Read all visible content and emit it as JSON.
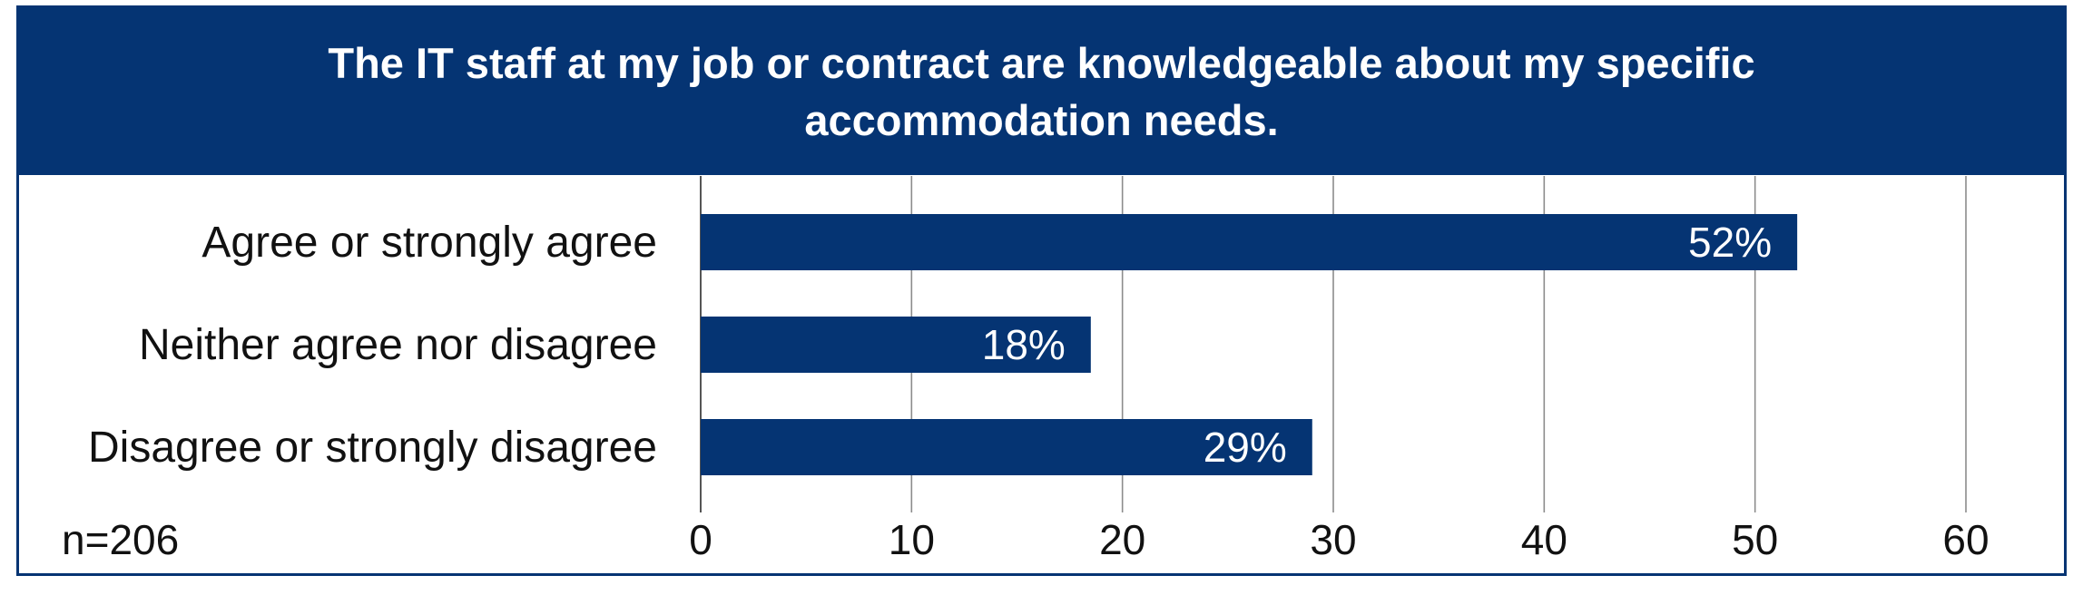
{
  "colors": {
    "accent": "#053473",
    "gridline": "#8c8c8c",
    "bar_label": "#ffffff"
  },
  "note": "n=206",
  "chart_data": {
    "type": "bar",
    "orientation": "horizontal",
    "title": "The IT staff at my job or contract are knowledgeable about my specific accommodation needs.",
    "categories": [
      "Agree or strongly agree",
      "Neither agree nor disagree",
      "Disagree or strongly disagree"
    ],
    "values": [
      52,
      18.5,
      29
    ],
    "data_labels": [
      "52%",
      "18%",
      "29%"
    ],
    "xlim": [
      0,
      60
    ],
    "xticks": [
      0,
      10,
      20,
      30,
      40,
      50,
      60
    ],
    "grid": true,
    "legend": "none"
  }
}
